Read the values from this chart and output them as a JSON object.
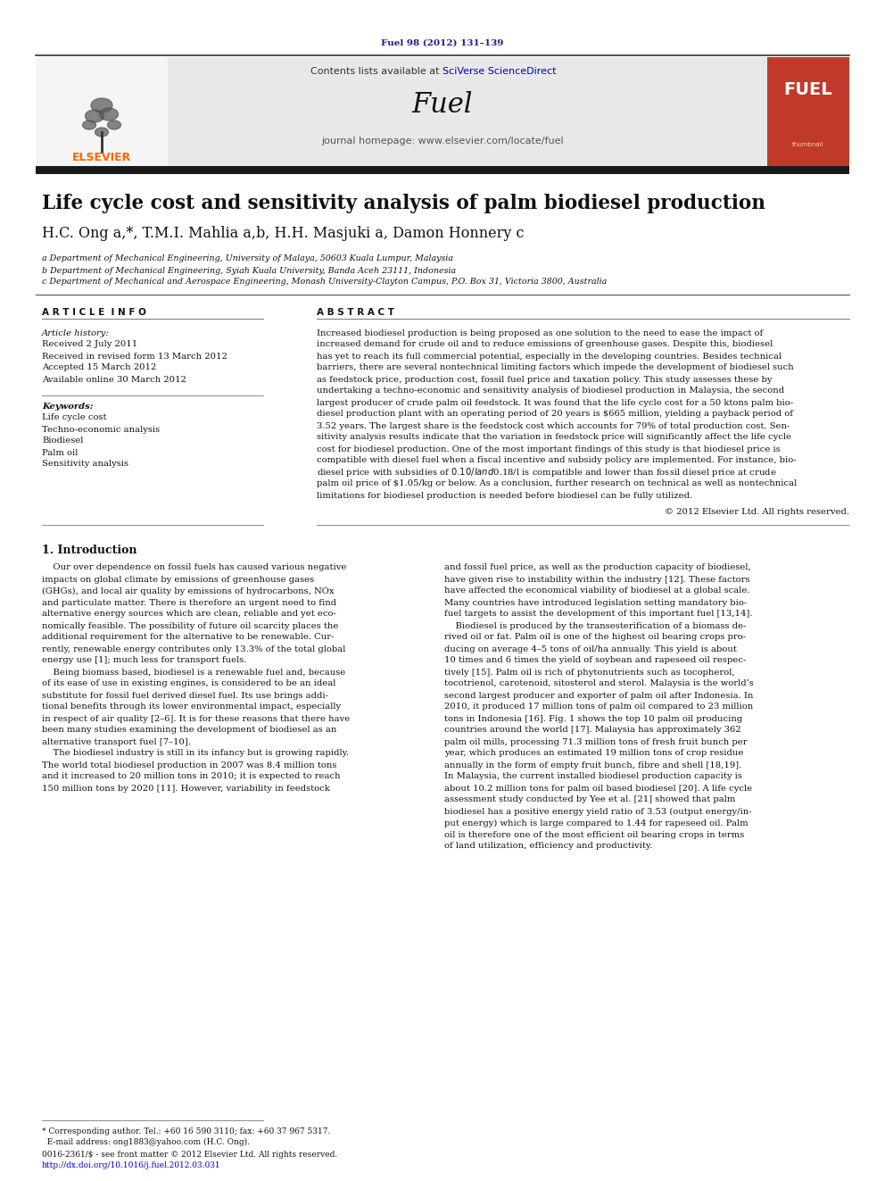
{
  "page_bg": "#ffffff",
  "journal_ref": "Fuel 98 (2012) 131–139",
  "journal_ref_color": "#1a1a8c",
  "header_bg": "#e8e8e8",
  "header_bar_color": "#1a1a1a",
  "fuel_journal_text": "Fuel",
  "contents_text": "Contents lists available at SciVerse ScienceDirect",
  "sciverse_color": "#0000cc",
  "homepage_text": "journal homepage: www.elsevier.com/locate/fuel",
  "elsevier_color": "#ff6600",
  "paper_title": "Life cycle cost and sensitivity analysis of palm biodiesel production",
  "authors_line": "H.C. Ong a,*, T.M.I. Mahlia a,b, H.H. Masjuki a, Damon Honnery c",
  "affil_a": "a Department of Mechanical Engineering, University of Malaya, 50603 Kuala Lumpur, Malaysia",
  "affil_b": "b Department of Mechanical Engineering, Syiah Kuala University, Banda Aceh 23111, Indonesia",
  "affil_c": "c Department of Mechanical and Aerospace Engineering, Monash University-Clayton Campus, P.O. Box 31, Victoria 3800, Australia",
  "article_info_title": "A R T I C L E  I N F O",
  "abstract_title": "A B S T R A C T",
  "article_history_label": "Article history:",
  "article_history_items": [
    "Received 2 July 2011",
    "Received in revised form 13 March 2012",
    "Accepted 15 March 2012",
    "Available online 30 March 2012"
  ],
  "keywords_label": "Keywords:",
  "keywords": [
    "Life cycle cost",
    "Techno-economic analysis",
    "Biodiesel",
    "Palm oil",
    "Sensitivity analysis"
  ],
  "copyright_text": "© 2012 Elsevier Ltd. All rights reserved.",
  "section1_title": "1. Introduction",
  "fuel_cover_color": "#c0392b",
  "dark_bar_color": "#1a1a1a",
  "abstract_lines": [
    "Increased biodiesel production is being proposed as one solution to the need to ease the impact of",
    "increased demand for crude oil and to reduce emissions of greenhouse gases. Despite this, biodiesel",
    "has yet to reach its full commercial potential, especially in the developing countries. Besides technical",
    "barriers, there are several nontechnical limiting factors which impede the development of biodiesel such",
    "as feedstock price, production cost, fossil fuel price and taxation policy. This study assesses these by",
    "undertaking a techno-economic and sensitivity analysis of biodiesel production in Malaysia, the second",
    "largest producer of crude palm oil feedstock. It was found that the life cycle cost for a 50 ktons palm bio-",
    "diesel production plant with an operating period of 20 years is $665 million, yielding a payback period of",
    "3.52 years. The largest share is the feedstock cost which accounts for 79% of total production cost. Sen-",
    "sitivity analysis results indicate that the variation in feedstock price will significantly affect the life cycle",
    "cost for biodiesel production. One of the most important findings of this study is that biodiesel price is",
    "compatible with diesel fuel when a fiscal incentive and subsidy policy are implemented. For instance, bio-",
    "diesel price with subsidies of $0.10/l and $0.18/l is compatible and lower than fossil diesel price at crude",
    "palm oil price of $1.05/kg or below. As a conclusion, further research on technical as well as nontechnical",
    "limitations for biodiesel production is needed before biodiesel can be fully utilized."
  ],
  "col1_lines": [
    "    Our over dependence on fossil fuels has caused various negative",
    "impacts on global climate by emissions of greenhouse gases",
    "(GHGs), and local air quality by emissions of hydrocarbons, NOx",
    "and particulate matter. There is therefore an urgent need to find",
    "alternative energy sources which are clean, reliable and yet eco-",
    "nomically feasible. The possibility of future oil scarcity places the",
    "additional requirement for the alternative to be renewable. Cur-",
    "rently, renewable energy contributes only 13.3% of the total global",
    "energy use [1]; much less for transport fuels.",
    "    Being biomass based, biodiesel is a renewable fuel and, because",
    "of its ease of use in existing engines, is considered to be an ideal",
    "substitute for fossil fuel derived diesel fuel. Its use brings addi-",
    "tional benefits through its lower environmental impact, especially",
    "in respect of air quality [2–6]. It is for these reasons that there have",
    "been many studies examining the development of biodiesel as an",
    "alternative transport fuel [7–10].",
    "    The biodiesel industry is still in its infancy but is growing rapidly.",
    "The world total biodiesel production in 2007 was 8.4 million tons",
    "and it increased to 20 million tons in 2010; it is expected to reach",
    "150 million tons by 2020 [11]. However, variability in feedstock"
  ],
  "col2_lines": [
    "and fossil fuel price, as well as the production capacity of biodiesel,",
    "have given rise to instability within the industry [12]. These factors",
    "have affected the economical viability of biodiesel at a global scale.",
    "Many countries have introduced legislation setting mandatory bio-",
    "fuel targets to assist the development of this important fuel [13,14].",
    "    Biodiesel is produced by the transesterification of a biomass de-",
    "rived oil or fat. Palm oil is one of the highest oil bearing crops pro-",
    "ducing on average 4–5 tons of oil/ha annually. This yield is about",
    "10 times and 6 times the yield of soybean and rapeseed oil respec-",
    "tively [15]. Palm oil is rich of phytonutrients such as tocopherol,",
    "tocotrienol, carotenoid, sitosterol and sterol. Malaysia is the world’s",
    "second largest producer and exporter of palm oil after Indonesia. In",
    "2010, it produced 17 million tons of palm oil compared to 23 million",
    "tons in Indonesia [16]. Fig. 1 shows the top 10 palm oil producing",
    "countries around the world [17]. Malaysia has approximately 362",
    "palm oil mills, processing 71.3 million tons of fresh fruit bunch per",
    "year, which produces an estimated 19 million tons of crop residue",
    "annually in the form of empty fruit bunch, fibre and shell [18,19].",
    "In Malaysia, the current installed biodiesel production capacity is",
    "about 10.2 million tons for palm oil based biodiesel [20]. A life cycle",
    "assessment study conducted by Yee et al. [21] showed that palm",
    "biodiesel has a positive energy yield ratio of 3.53 (output energy/in-",
    "put energy) which is large compared to 1.44 for rapeseed oil. Palm",
    "oil is therefore one of the most efficient oil bearing crops in terms",
    "of land utilization, efficiency and productivity."
  ],
  "footnote1": "* Corresponding author. Tel.: +60 16 590 3110; fax: +60 37 967 5317.",
  "footnote2": "  E-mail address: ong1883@yahoo.com (H.C. Ong).",
  "issn_line": "0016-2361/$ - see front matter © 2012 Elsevier Ltd. All rights reserved.",
  "doi_line": "http://dx.doi.org/10.1016/j.fuel.2012.03.031",
  "doi_color": "#0000cc"
}
